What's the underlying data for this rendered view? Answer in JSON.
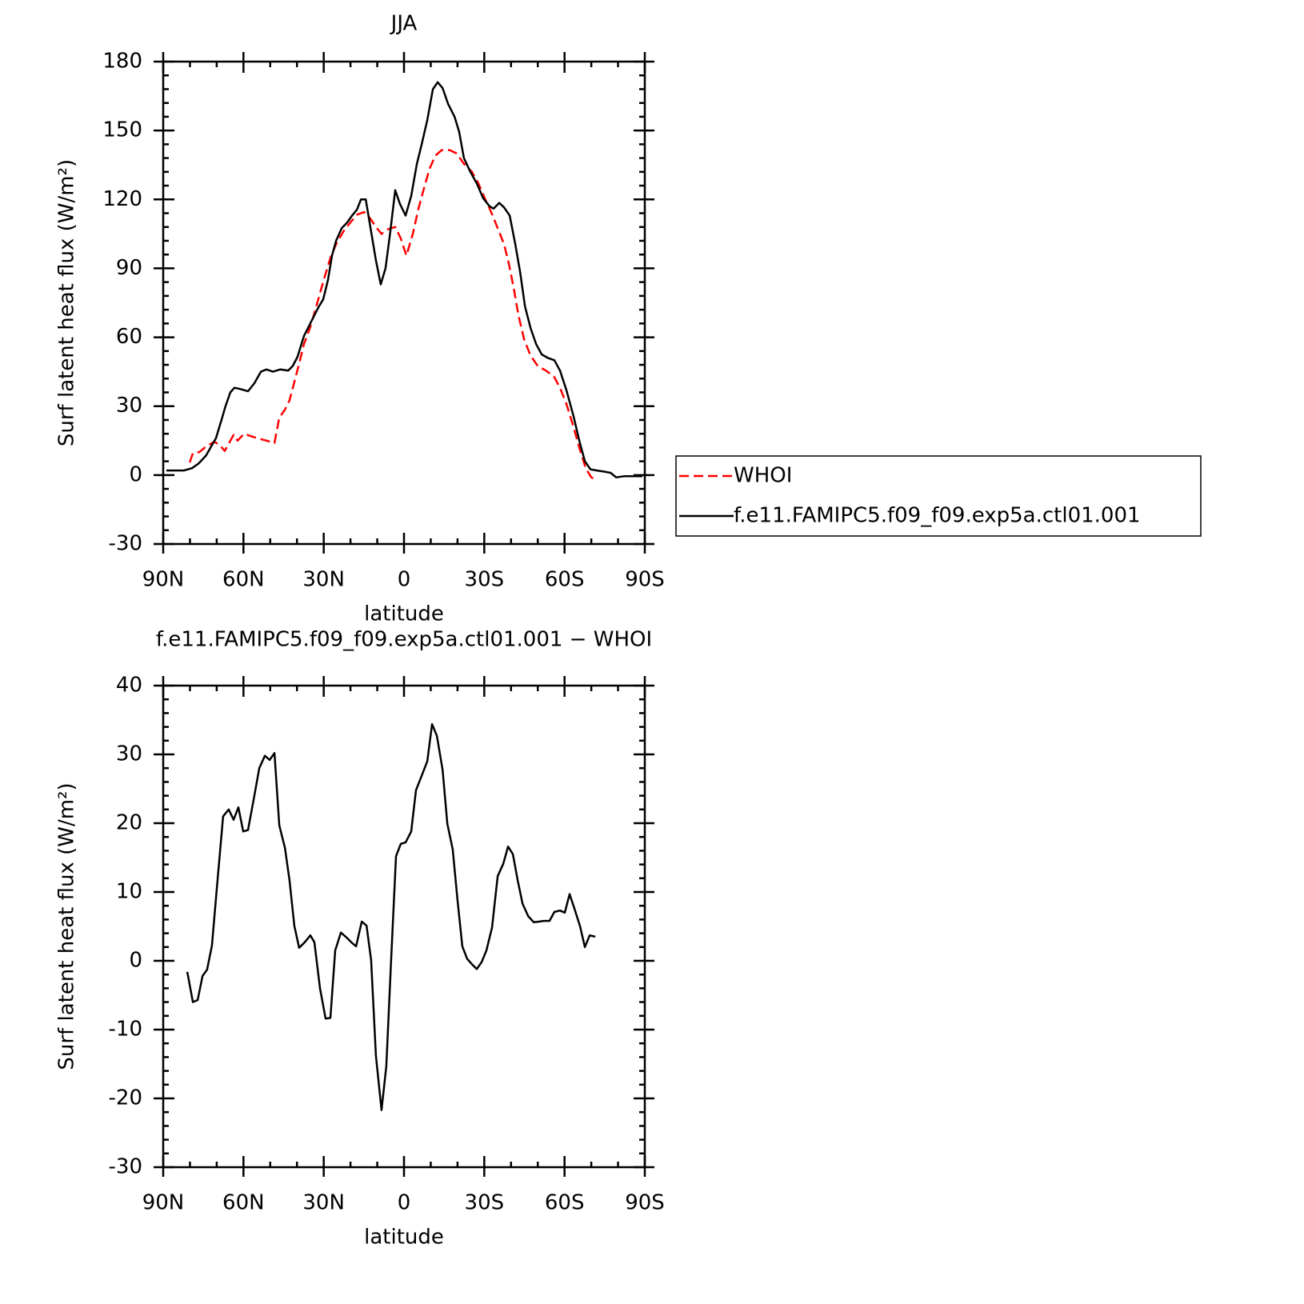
{
  "chart_data": [
    {
      "type": "line",
      "title": "JJA",
      "xlabel": "latitude",
      "ylabel": "Surf latent heat flux (W/m²)",
      "xlim": [
        90,
        -90
      ],
      "xticks": [
        {
          "value": 90,
          "label": "90N"
        },
        {
          "value": 60,
          "label": "60N"
        },
        {
          "value": 30,
          "label": "30N"
        },
        0,
        {
          "value": -30,
          "label": "30S"
        },
        {
          "value": -60,
          "label": "60S"
        },
        {
          "value": -90,
          "label": "90S"
        }
      ],
      "ylim": [
        -30,
        180
      ],
      "yticks": [
        -30,
        0,
        30,
        60,
        90,
        120,
        150,
        180
      ],
      "legend": "outside-right",
      "series": [
        {
          "name": "WHOI",
          "color": "#ff0000",
          "style": "dashed",
          "x": [
            80.1,
            78.9,
            76.5,
            73.9,
            70.9,
            68.8,
            67,
            63.7,
            62.2,
            59.8,
            57.4,
            54.7,
            51.4,
            48.4,
            46.6,
            44.5,
            42.8,
            41,
            39.2,
            37.4,
            35.3,
            33.5,
            31.7,
            29.6,
            27.5,
            25.4,
            22.7,
            19.7,
            17.3,
            14.9,
            12.8,
            10.5,
            8.4,
            6,
            3.3,
            1.2,
            -0.9,
            -3.3,
            -5.4,
            -7.5,
            -9.6,
            -11.7,
            -14.1,
            -17.1,
            -19.7,
            -22.4,
            -25.4,
            -27.8,
            -30.2,
            -32.6,
            -35,
            -37.4,
            -39.2,
            -41,
            -42.8,
            -44.9,
            -47.3,
            -50,
            -53,
            -56,
            -58.3,
            -60.7,
            -63.1,
            -65.5,
            -67.9,
            -70,
            -71.8
          ],
          "values": [
            5.5,
            9.5,
            10,
            12.5,
            14.5,
            13,
            10.5,
            17.5,
            15,
            18,
            17,
            16,
            15,
            14,
            25,
            28.5,
            32.5,
            40.5,
            48.5,
            57,
            63.5,
            70.5,
            78,
            86.5,
            94.5,
            100.5,
            106,
            110.5,
            113.5,
            114.5,
            112,
            108,
            105,
            107,
            108,
            103,
            95.5,
            105,
            116,
            125,
            133.5,
            139,
            141.5,
            141.5,
            140,
            135.5,
            132,
            127,
            120.5,
            114.5,
            107.5,
            100.5,
            92,
            81.5,
            69.5,
            59,
            52,
            47.5,
            45.5,
            43,
            38,
            31,
            22,
            12,
            3,
            -1,
            -2
          ]
        },
        {
          "name": "f.e11.FAMIPC5.f09_f09.exp5a.ctl01.001",
          "color": "#000000",
          "style": "solid",
          "x": [
            88.8,
            82.2,
            79.2,
            76.8,
            74,
            71.8,
            70.3,
            68.2,
            66.7,
            64.9,
            63.4,
            61.3,
            58.3,
            55.9,
            53.5,
            51.4,
            49,
            46.3,
            43.3,
            41.6,
            39.8,
            37.4,
            34.4,
            32,
            30.2,
            28.4,
            26.9,
            25.4,
            23.3,
            21.2,
            19.4,
            17.6,
            16.1,
            14.3,
            12.3,
            10.5,
            8.7,
            6.9,
            5.1,
            3.3,
            1.5,
            -0.6,
            -2.7,
            -4.8,
            -6.6,
            -8.7,
            -10.8,
            -12.6,
            -14.4,
            -16.5,
            -18.9,
            -20.6,
            -22.4,
            -24.8,
            -27.2,
            -29.6,
            -32,
            -33.5,
            -35.6,
            -37.4,
            -39.5,
            -41.6,
            -43.4,
            -45.2,
            -47.3,
            -49.4,
            -51.5,
            -53.8,
            -56.2,
            -58.3,
            -60.7,
            -63.4,
            -65.5,
            -67.6,
            -69.7,
            -72.1,
            -74.8,
            -77.2,
            -79.3,
            -82.2,
            -89.1
          ],
          "values": [
            2,
            2,
            3,
            5,
            8.5,
            13,
            16,
            24,
            30,
            36,
            38,
            37.5,
            36.5,
            40,
            45,
            46,
            45,
            46,
            45.5,
            47.5,
            51.5,
            60.5,
            67.5,
            73,
            76.5,
            85,
            95.5,
            102,
            107.5,
            110,
            113,
            115.5,
            120,
            120,
            106,
            93.5,
            83,
            90,
            106,
            124,
            118,
            113,
            121.5,
            135.5,
            144,
            154.5,
            168,
            171,
            168.5,
            161.5,
            156,
            149.5,
            138,
            132,
            127,
            120.5,
            117,
            116,
            118.5,
            116.5,
            113,
            100.5,
            88.5,
            73.5,
            64,
            57,
            52.5,
            51,
            50,
            45.5,
            37,
            25.5,
            15,
            6,
            2.5,
            2,
            1.5,
            1,
            -1,
            -0.5,
            -0.5
          ]
        }
      ]
    },
    {
      "type": "line",
      "title": "f.e11.FAMIPC5.f09_f09.exp5a.ctl01.001 − WHOI",
      "xlabel": "latitude",
      "ylabel": "Surf latent heat flux (W/m²)",
      "xlim": [
        90,
        -90
      ],
      "xticks": [
        {
          "value": 90,
          "label": "90N"
        },
        {
          "value": 60,
          "label": "60N"
        },
        {
          "value": 30,
          "label": "30N"
        },
        0,
        {
          "value": -30,
          "label": "30S"
        },
        {
          "value": -60,
          "label": "60S"
        },
        {
          "value": -90,
          "label": "90S"
        }
      ],
      "ylim": [
        -30,
        40
      ],
      "yticks": [
        -30,
        -20,
        -10,
        0,
        10,
        20,
        30,
        40
      ],
      "series": [
        {
          "color": "#000000",
          "style": "solid",
          "x": [
            81,
            78.9,
            77.1,
            75.3,
            73.6,
            71.8,
            69.7,
            67.6,
            65.5,
            63.7,
            61.9,
            60.1,
            58.3,
            56.2,
            54.1,
            52,
            50.2,
            48.4,
            46.6,
            44.5,
            42.8,
            41,
            39.2,
            37.1,
            35,
            33.5,
            31.4,
            29.3,
            27.5,
            25.7,
            23.6,
            21.5,
            19.7,
            17.9,
            15.8,
            14,
            12.3,
            10.5,
            8.4,
            6.6,
            4.8,
            3,
            1.2,
            -0.6,
            -2.7,
            -4.5,
            -6.6,
            -8.7,
            -10.5,
            -12.3,
            -14.4,
            -16.2,
            -18.2,
            -20,
            -21.8,
            -23.6,
            -25.4,
            -27.2,
            -29,
            -30.8,
            -32.9,
            -35,
            -37.1,
            -38.9,
            -40.7,
            -42.5,
            -44.3,
            -46.4,
            -48.5,
            -50.5,
            -52.3,
            -54.4,
            -56.2,
            -58.3,
            -60.1,
            -61.9,
            -63.7,
            -65.8,
            -67.6,
            -69.4,
            -71.5
          ],
          "values": [
            -1.6,
            -6,
            -5.7,
            -2.2,
            -1.3,
            2.2,
            11.7,
            21,
            22,
            20.5,
            22.3,
            18.8,
            19,
            23.4,
            28,
            29.8,
            29.2,
            30.2,
            19.7,
            16.4,
            11.7,
            5.1,
            1.9,
            2.7,
            3.7,
            2.7,
            -4,
            -8.4,
            -8.3,
            1.5,
            4.1,
            3.4,
            2.7,
            2.1,
            5.7,
            5.1,
            0.1,
            -13.8,
            -21.7,
            -15.3,
            0.1,
            15.2,
            17,
            17.2,
            18.8,
            24.8,
            26.9,
            29,
            34.4,
            32.7,
            27.8,
            19.9,
            16.2,
            8.8,
            2.1,
            0.3,
            -0.5,
            -1.2,
            -0.2,
            1.5,
            4.8,
            12.3,
            14.1,
            16.6,
            15.5,
            11.7,
            8.3,
            6.5,
            5.6,
            5.7,
            5.8,
            5.8,
            7.1,
            7.3,
            7,
            9.7,
            7.6,
            5,
            2,
            3.7,
            3.5
          ]
        }
      ]
    }
  ]
}
